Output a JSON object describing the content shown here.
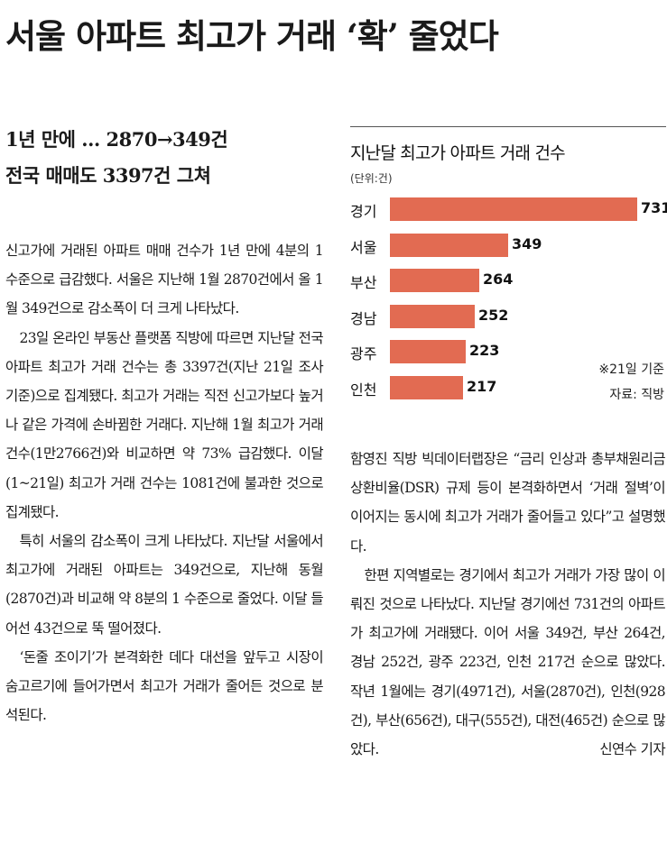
{
  "headline": "서울 아파트 최고가 거래 ‘확’ 줄었다",
  "subheadlines": [
    "1년 만에 … 2870→349건",
    "전국 매매도 3397건 그쳐"
  ],
  "left_column": [
    "신고가에 거래된 아파트 매매 건수가 1년 만에 4분의 1 수준으로 급감했다. 서울은 지난해 1월 2870건에서 올 1월 349건으로 감소폭이 더 크게 나타났다.",
    "23일 온라인 부동산 플랫폼 직방에 따르면 지난달 전국 아파트 최고가 거래 건수는 총 3397건(지난 21일 조사 기준)으로 집계됐다. 최고가 거래는 직전 신고가보다 높거나 같은 가격에 손바뀜한 거래다. 지난해 1월 최고가 거래 건수(1만2766건)와 비교하면 약 73% 급감했다. 이달(1~21일) 최고가 거래 건수는 1081건에 불과한 것으로 집계됐다.",
    "특히 서울의 감소폭이 크게 나타났다. 지난달 서울에서 최고가에 거래된 아파트는 349건으로, 지난해 동월(2870건)과 비교해 약 8분의 1 수준으로 줄었다. 이달 들어선 43건으로 뚝 떨어졌다.",
    "‘돈줄 조이기’가 본격화한 데다 대선을 앞두고 시장이 숨고르기에 들어가면서 최고가 거래가 줄어든 것으로 분석된다."
  ],
  "right_column": [
    "함영진 직방 빅데이터랩장은 “금리 인상과 총부채원리금상환비율(DSR) 규제 등이 본격화하면서 ‘거래 절벽’이 이어지는 동시에 최고가 거래가 줄어들고 있다”고 설명했다.",
    "한편 지역별로는 경기에서 최고가 거래가 가장 많이 이뤄진 것으로 나타났다. 지난달 경기에선 731건의 아파트가 최고가에 거래됐다. 이어 서울 349건, 부산 264건, 경남 252건, 광주 223건, 인천 217건 순으로 많았다. 작년 1월에는 경기(4971건), 서울(2870건), 인천(928건), 부산(656건), 대구(555건), 대전(465건) 순으로 많았다."
  ],
  "byline": "신연수 기자",
  "chart_data": {
    "type": "bar",
    "orientation": "horizontal",
    "title": "지난달 최고가 아파트 거래 건수",
    "unit": "(단위:건)",
    "categories": [
      "경기",
      "서울",
      "부산",
      "경남",
      "광주",
      "인천"
    ],
    "values": [
      731,
      349,
      264,
      252,
      223,
      217
    ],
    "xlim": [
      0,
      731
    ],
    "bar_color": "#e26b52",
    "notes": [
      "※21일 기준",
      "자료: 직방"
    ]
  }
}
